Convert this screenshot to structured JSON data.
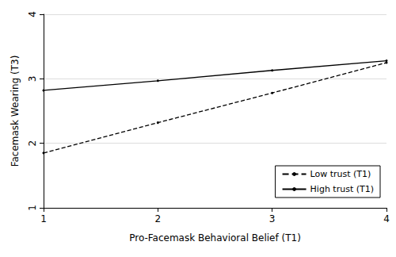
{
  "chart_data": {
    "type": "line",
    "x_label": "Pro-Facemask Behavioral Belief (T1)",
    "y_label": "Facemask Wearing (T3)",
    "x": [
      1,
      2,
      3,
      4
    ],
    "series": [
      {
        "name": "Low trust (T1)",
        "color": "#000000",
        "line_style": "dashed",
        "marker": "circle",
        "values": [
          1.85,
          2.32,
          2.78,
          3.25
        ]
      },
      {
        "name": "High trust (T1)",
        "color": "#000000",
        "line_style": "solid",
        "marker": "circle",
        "values": [
          2.82,
          2.97,
          3.13,
          3.28
        ]
      }
    ],
    "xlim": [
      1,
      4
    ],
    "xticks": [
      1,
      2,
      3,
      4
    ],
    "ylim": [
      1,
      4
    ],
    "yticks": [
      1,
      2,
      3,
      4
    ],
    "grid": true,
    "legend": "bottom-right"
  }
}
